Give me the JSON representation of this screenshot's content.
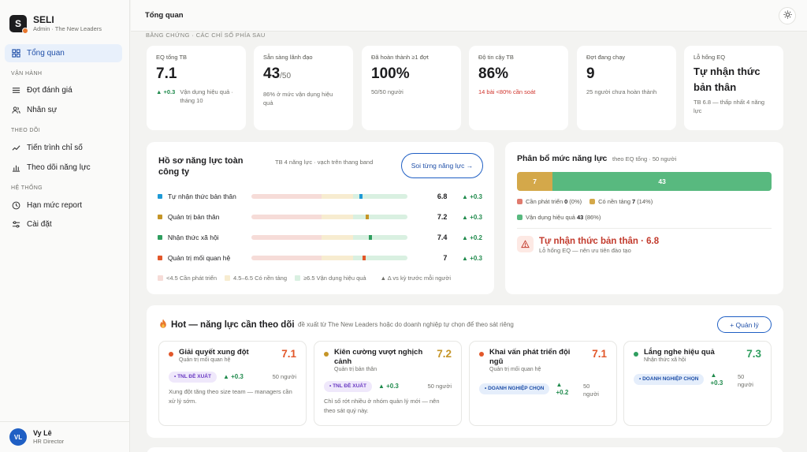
{
  "brand": {
    "initial": "S",
    "name": "SELI",
    "subtitle": "Admin · The New Leaders"
  },
  "sidebar": {
    "top_item": {
      "label": "Tổng quan",
      "icon": "grid-icon"
    },
    "sections": [
      {
        "label": "Vận hành",
        "items": [
          {
            "label": "Đợt đánh giá",
            "icon": "list-icon"
          },
          {
            "label": "Nhân sự",
            "icon": "users-icon"
          }
        ]
      },
      {
        "label": "Theo dõi",
        "items": [
          {
            "label": "Tiến trình chỉ số",
            "icon": "trend-icon"
          },
          {
            "label": "Theo dõi năng lực",
            "icon": "bar-chart-icon"
          }
        ]
      },
      {
        "label": "Hệ thống",
        "items": [
          {
            "label": "Hạn mức report",
            "icon": "clock-icon"
          },
          {
            "label": "Cài đặt",
            "icon": "sliders-icon"
          }
        ]
      }
    ]
  },
  "user": {
    "initials": "VL",
    "name": "Vy Lê",
    "role": "HR Director"
  },
  "topbar": {
    "title": "Tổng quan",
    "theme_icon": "sun-icon"
  },
  "section_label": "Bằng chứng · các chỉ số phía sau",
  "kpis": [
    {
      "label": "EQ tổng TB",
      "value": "7.1",
      "delta": "▲ +0.3",
      "note": "Vận dụng hiệu quả · tháng 10"
    },
    {
      "label": "Sẵn sàng lãnh đạo",
      "value": "43",
      "value_suffix": "/50",
      "note": "86% ở mức vận dụng hiệu quả"
    },
    {
      "label": "Đã hoàn thành ≥1 đợt",
      "value": "100%",
      "note": "50/50 người"
    },
    {
      "label": "Độ tin cậy TB",
      "value": "86%",
      "note": "14 bài <80% cần soát"
    },
    {
      "label": "Đợt đang chạy",
      "value": "9",
      "note": "25 người chưa hoàn thành"
    },
    {
      "label": "Lỗ hổng EQ",
      "value": "Tự nhận thức bản thân",
      "note": "TB 6.8 — thấp nhất 4 năng lực"
    }
  ],
  "profile": {
    "title": "Hồ sơ năng lực toàn công ty",
    "subtitle": "TB 4 năng lực · vạch trên thang band",
    "button": "Soi từng năng lực →",
    "scale": {
      "min": 0,
      "max": 10,
      "band_low": 4.5,
      "band_high": 6.5
    },
    "rows": [
      {
        "label": "Tự nhận thức bản thân",
        "score": 6.8,
        "score_text": "6.8",
        "delta": "▲ +0.3",
        "color": "#1e9ad6"
      },
      {
        "label": "Quản trị bản thân",
        "score": 7.2,
        "score_text": "7.2",
        "delta": "▲ +0.3",
        "color": "#c59527"
      },
      {
        "label": "Nhận thức xã hội",
        "score": 7.4,
        "score_text": "7.4",
        "delta": "▲ +0.2",
        "color": "#2f9e5f"
      },
      {
        "label": "Quản trị mối quan hệ",
        "score": 7.0,
        "score_text": "7",
        "delta": "▲ +0.3",
        "color": "#e2572a"
      }
    ],
    "legend": [
      {
        "label": "<4.5 Cần phát triển",
        "color": "#f6dcd8"
      },
      {
        "label": "4.5–6.5 Có nền tảng",
        "color": "#f7ecd0"
      },
      {
        "label": "≥6.5 Vận dụng hiệu quả",
        "color": "#d9f0e1"
      }
    ],
    "legend_note": "▲ Δ vs kỳ trước mỗi người"
  },
  "distribution": {
    "title": "Phân bổ mức năng lực",
    "subtitle": "theo EQ tổng · 50 người",
    "total": 50,
    "segments": [
      {
        "label": "Cần phát triển",
        "count": 0,
        "pct": "(0%)",
        "color": "#e07b6e"
      },
      {
        "label": "Có nền tảng",
        "count": 7,
        "pct": "(14%)",
        "color": "#d4a84a"
      },
      {
        "label": "Vận dụng hiệu quả",
        "count": 43,
        "pct": "(86%)",
        "color": "#58b97f"
      }
    ],
    "alert_title": "Tự nhận thức bản thân · 6.8",
    "alert_sub": "Lỗ hổng EQ — nên ưu tiên đào tạo",
    "alert_icon": "warning-icon"
  },
  "hot": {
    "title": "Hot — năng lực cần theo dõi",
    "icon": "fire-icon",
    "subtitle": "đề xuất từ The New Leaders hoặc do doanh nghiệp tự chọn để theo sát riêng",
    "button": "+ Quản lý",
    "cards": [
      {
        "title": "Giải quyết xung đột",
        "category": "Quản trị mối quan hệ",
        "score": "7.1",
        "score_color": "#e2572a",
        "dot_color": "#e2572a",
        "badge": "• TNL ĐỀ XUẤT",
        "badge_style": "purple",
        "delta": "▲ +0.3",
        "count": "50 người",
        "desc": "Xung đột tăng theo size team — managers cần xử lý sớm."
      },
      {
        "title": "Kiên cường vượt nghịch cảnh",
        "category": "Quản trị bản thân",
        "score": "7.2",
        "score_color": "#c59527",
        "dot_color": "#c59527",
        "badge": "• TNL ĐỀ XUẤT",
        "badge_style": "purple",
        "delta": "▲ +0.3",
        "count": "50 người",
        "desc": "Chỉ số rớt nhiều ở nhóm quản lý mới — nên theo sát quý này."
      },
      {
        "title": "Khai vấn phát triển đội ngũ",
        "category": "Quản trị mối quan hệ",
        "score": "7.1",
        "score_color": "#e2572a",
        "dot_color": "#e2572a",
        "badge": "• DOANH NGHIỆP CHỌN",
        "badge_style": "blue",
        "delta": "▲ +0.2",
        "count": "50 người",
        "desc": ""
      },
      {
        "title": "Lắng nghe hiệu quả",
        "category": "Nhận thức xã hội",
        "score": "7.3",
        "score_color": "#2f9e5f",
        "dot_color": "#2f9e5f",
        "badge": "• DOANH NGHIỆP CHỌN",
        "badge_style": "blue",
        "delta": "▲ +0.3",
        "count": "50 người",
        "desc": ""
      }
    ]
  }
}
